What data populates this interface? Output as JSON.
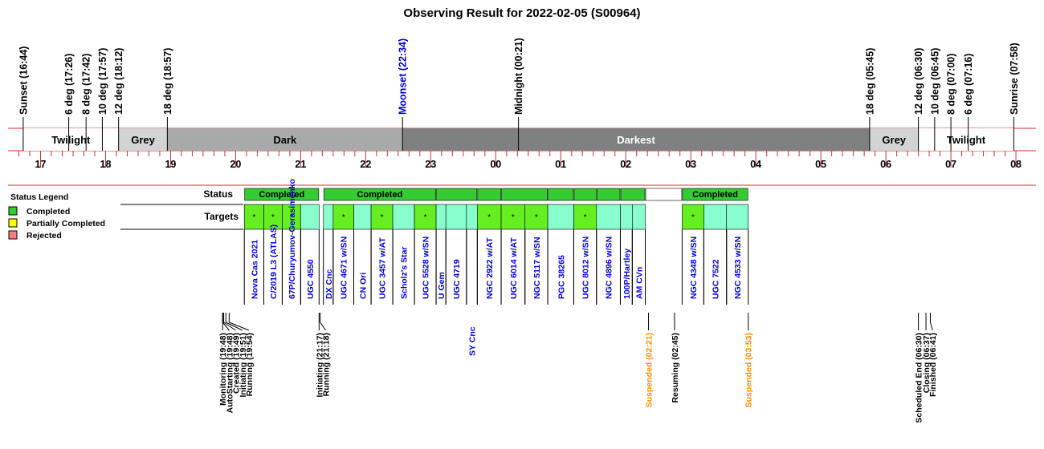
{
  "chart_data": {
    "type": "timeline",
    "title": "Observing Result for 2022-02-05 (S00964)",
    "time_range": [
      "16:34",
      "08:00"
    ],
    "hour_ticks": [
      "17",
      "18",
      "19",
      "20",
      "21",
      "22",
      "23",
      "00",
      "01",
      "02",
      "03",
      "04",
      "05",
      "06",
      "07",
      "08"
    ],
    "sky_events": [
      {
        "label": "Sunset (16:44)",
        "time": "16:44",
        "color": "#000000"
      },
      {
        "label": "6 deg (17:26)",
        "time": "17:26",
        "color": "#000000"
      },
      {
        "label": "8 deg (17:42)",
        "time": "17:42",
        "color": "#000000"
      },
      {
        "label": "10 deg (17:57)",
        "time": "17:57",
        "color": "#000000"
      },
      {
        "label": "12 deg (18:12)",
        "time": "18:12",
        "color": "#000000"
      },
      {
        "label": "18 deg (18:57)",
        "time": "18:57",
        "color": "#000000"
      },
      {
        "label": "Moonset (22:34)",
        "time": "22:34",
        "color": "#0000cc"
      },
      {
        "label": "Midnight (00:21)",
        "time": "00:21",
        "color": "#000000"
      },
      {
        "label": "18 deg (05:45)",
        "time": "05:45",
        "color": "#000000"
      },
      {
        "label": "12 deg (06:30)",
        "time": "06:30",
        "color": "#000000"
      },
      {
        "label": "10 deg (06:45)",
        "time": "06:45",
        "color": "#000000"
      },
      {
        "label": "8 deg (07:00)",
        "time": "07:00",
        "color": "#000000"
      },
      {
        "label": "6 deg (07:16)",
        "time": "07:16",
        "color": "#000000"
      },
      {
        "label": "Sunrise (07:58)",
        "time": "07:58",
        "color": "#000000"
      }
    ],
    "sky_bands": [
      {
        "label": "Twilight",
        "start": "16:44",
        "end": "18:12",
        "color": "#ffffff",
        "text_color": "#000000"
      },
      {
        "label": "Grey",
        "start": "18:12",
        "end": "18:57",
        "color": "#d3d3d3",
        "text_color": "#000000"
      },
      {
        "label": "Dark",
        "start": "18:57",
        "end": "22:34",
        "color": "#a9a9a9",
        "text_color": "#000000"
      },
      {
        "label": "Darkest",
        "start": "22:34",
        "end": "05:45",
        "color": "#808080",
        "text_color": "#ffffff"
      },
      {
        "label": "Grey",
        "start": "05:45",
        "end": "06:30",
        "color": "#d3d3d3",
        "text_color": "#000000"
      },
      {
        "label": "Twilight",
        "start": "06:30",
        "end": "07:58",
        "color": "#ffffff",
        "text_color": "#000000"
      }
    ],
    "legend": {
      "title": "Status Legend",
      "placement": "left",
      "items": [
        {
          "label": "Completed",
          "color": "#33cc33"
        },
        {
          "label": "Partially Completed",
          "color": "#ffff00"
        },
        {
          "label": "Rejected",
          "color": "#ff7f7f"
        }
      ]
    },
    "row_labels": {
      "status": "Status",
      "targets": "Targets"
    },
    "status_segments": [
      {
        "start": "20:08",
        "end": "21:17",
        "label": "Completed",
        "color": "#33cc33"
      },
      {
        "start": "21:21",
        "end": "23:05",
        "label": "Completed",
        "color": "#33cc33"
      },
      {
        "start": "23:05",
        "end": "23:43",
        "label": "",
        "color": "#33cc33"
      },
      {
        "start": "23:43",
        "end": "00:05",
        "label": "",
        "color": "#33cc33"
      },
      {
        "start": "00:05",
        "end": "00:48",
        "label": "",
        "color": "#33cc33"
      },
      {
        "start": "00:48",
        "end": "01:12",
        "label": "",
        "color": "#33cc33"
      },
      {
        "start": "01:12",
        "end": "01:33",
        "label": "",
        "color": "#33cc33"
      },
      {
        "start": "01:33",
        "end": "01:55",
        "label": "",
        "color": "#33cc33"
      },
      {
        "start": "01:55",
        "end": "02:18",
        "label": "",
        "color": "#33cc33"
      },
      {
        "start": "02:18",
        "end": "02:52",
        "label": "",
        "color": "#ffffff"
      },
      {
        "start": "02:52",
        "end": "03:53",
        "label": "Completed",
        "color": "#33cc33"
      }
    ],
    "targets": [
      {
        "name": "Nova Cas 2021",
        "start": "20:08",
        "end": "20:26",
        "fill": "#66ee22",
        "marker": "*"
      },
      {
        "name": "C/2019 L3 (ATLAS)",
        "start": "20:26",
        "end": "20:43",
        "fill": "#66ee22",
        "marker": "*"
      },
      {
        "name": "67P/Churyumov-Gerasimenko",
        "start": "20:43",
        "end": "21:00",
        "fill": "#66ee22",
        "marker": "*"
      },
      {
        "name": "UGC 4550",
        "start": "21:00",
        "end": "21:17",
        "fill": "#88ffcc",
        "marker": ""
      },
      {
        "name": "DX Cnc",
        "start": "21:21",
        "end": "21:30",
        "fill": "#88ffcc",
        "marker": ""
      },
      {
        "name": "UGC 4671 w/SN",
        "start": "21:30",
        "end": "21:49",
        "fill": "#66ee22",
        "marker": "*"
      },
      {
        "name": "CN Ori",
        "start": "21:49",
        "end": "22:05",
        "fill": "#88ffcc",
        "marker": ""
      },
      {
        "name": "UGC 3457 w/AT",
        "start": "22:05",
        "end": "22:25",
        "fill": "#66ee22",
        "marker": "*"
      },
      {
        "name": "Scholz's Star",
        "start": "22:25",
        "end": "22:45",
        "fill": "#88ffcc",
        "marker": ""
      },
      {
        "name": "UGC 5528 w/SN",
        "start": "22:45",
        "end": "23:05",
        "fill": "#66ee22",
        "marker": "*"
      },
      {
        "name": "U Gem",
        "start": "23:05",
        "end": "23:14",
        "fill": "#88ffcc",
        "marker": ""
      },
      {
        "name": "UGC 4719",
        "start": "23:14",
        "end": "23:33",
        "fill": "#88ffcc",
        "marker": ""
      },
      {
        "name": "SY Cnc",
        "start": "23:33",
        "end": "23:43",
        "fill": "#88ffcc",
        "marker": ""
      },
      {
        "name": "NGC 2922 w/AT",
        "start": "23:43",
        "end": "00:05",
        "fill": "#66ee22",
        "marker": "*"
      },
      {
        "name": "UGC 6014 w/AT",
        "start": "00:05",
        "end": "00:27",
        "fill": "#66ee22",
        "marker": "*"
      },
      {
        "name": "NGC 5117 w/SN",
        "start": "00:27",
        "end": "00:48",
        "fill": "#66ee22",
        "marker": "*"
      },
      {
        "name": "PGC 38265",
        "start": "00:48",
        "end": "01:12",
        "fill": "#88ffcc",
        "marker": ""
      },
      {
        "name": "UGC 8012 w/SN",
        "start": "01:12",
        "end": "01:33",
        "fill": "#66ee22",
        "marker": "*"
      },
      {
        "name": "NGC 4896 w/SN",
        "start": "01:33",
        "end": "01:55",
        "fill": "#88ffcc",
        "marker": ""
      },
      {
        "name": "100P/Hartley",
        "start": "01:55",
        "end": "02:06",
        "fill": "#88ffcc",
        "marker": ""
      },
      {
        "name": "AM CVn",
        "start": "02:06",
        "end": "02:18",
        "fill": "#88ffcc",
        "marker": ""
      },
      {
        "name": "NGC 4348 w/SN",
        "start": "02:52",
        "end": "03:12",
        "fill": "#66ee22",
        "marker": "*"
      },
      {
        "name": "UGC 7522",
        "start": "03:12",
        "end": "03:33",
        "fill": "#88ffcc",
        "marker": ""
      },
      {
        "name": "NGC 4533 w/SN",
        "start": "03:33",
        "end": "03:53",
        "fill": "#88ffcc",
        "marker": ""
      }
    ],
    "run_events": [
      {
        "label": "Monitoring (19:48)",
        "time": "19:48",
        "color": "#000000"
      },
      {
        "label": "AutoStarting (19:48)",
        "time": "19:48",
        "color": "#000000"
      },
      {
        "label": "Created (19:49)",
        "time": "19:49",
        "color": "#000000"
      },
      {
        "label": "Initiating (19:51)",
        "time": "19:51",
        "color": "#000000"
      },
      {
        "label": "Running (19:54)",
        "time": "19:54",
        "color": "#000000"
      },
      {
        "label": "Initiating (21:17)",
        "time": "21:17",
        "color": "#000000"
      },
      {
        "label": "Running (21:18)",
        "time": "21:18",
        "color": "#000000"
      },
      {
        "label": "Suspended (02:21)",
        "time": "02:21",
        "color": "#ff8c00"
      },
      {
        "label": "Resuming (02:45)",
        "time": "02:45",
        "color": "#000000"
      },
      {
        "label": "Suspended (03:53)",
        "time": "03:53",
        "color": "#ff8c00"
      },
      {
        "label": "Scheduled End (06:30)",
        "time": "06:30",
        "color": "#000000"
      },
      {
        "label": "Closing (06:37)",
        "time": "06:37",
        "color": "#000000"
      },
      {
        "label": "Finished (06:41)",
        "time": "06:41",
        "color": "#000000"
      }
    ]
  }
}
